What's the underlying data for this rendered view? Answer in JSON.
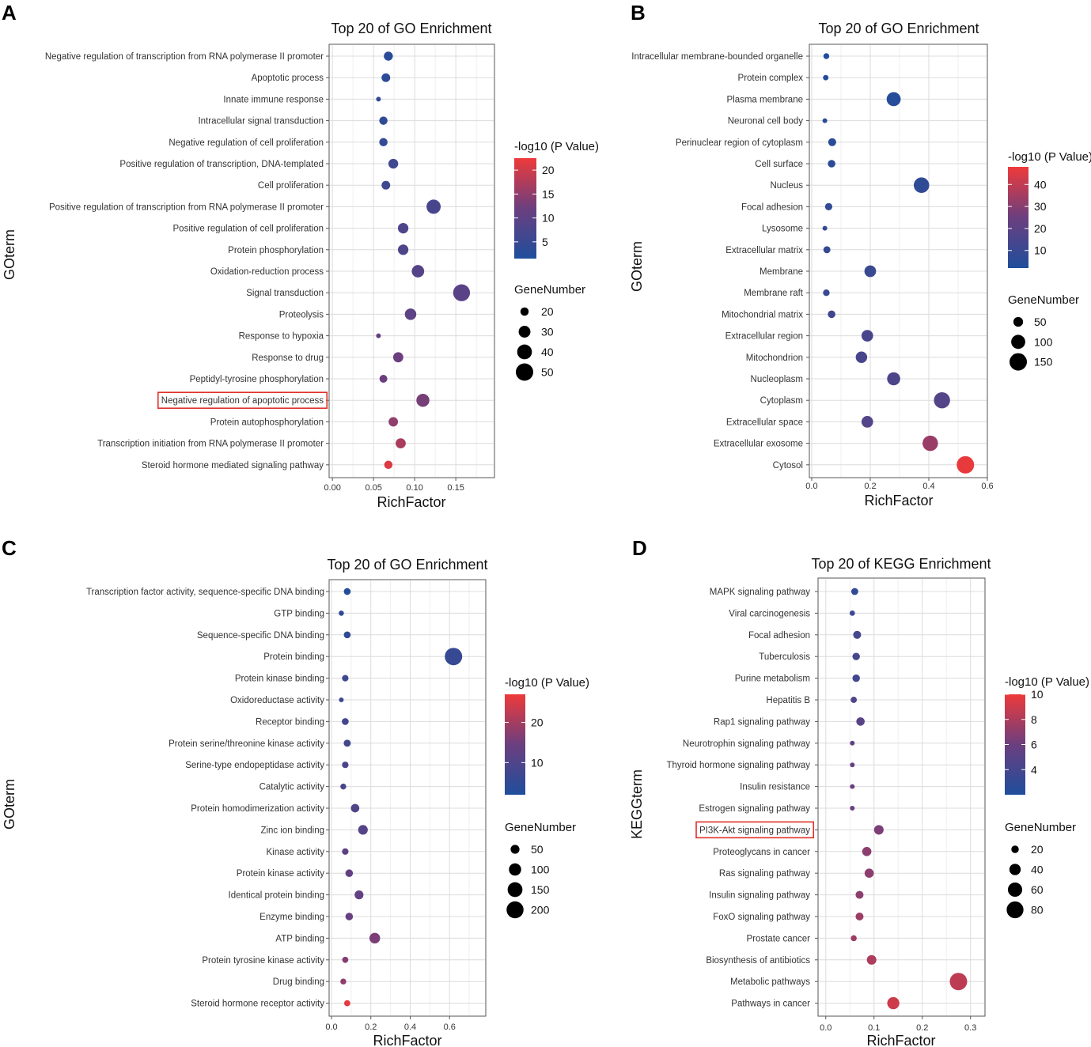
{
  "colors": {
    "low": "#1f4e9c",
    "mid": "#6b3f7f",
    "high": "#ee3a3a",
    "highlight": "#e0302a"
  },
  "chart_data": [
    {
      "type": "scatter",
      "panel": "A",
      "title": "Top 20 of GO Enrichment",
      "xlabel": "RichFactor",
      "ylabel": "GOterm",
      "xlim": [
        -0.004,
        0.197
      ],
      "xticks": [
        0.0,
        0.05,
        0.1,
        0.15
      ],
      "xtick_labels": [
        "0.00",
        "0.05",
        "0.10",
        "0.15"
      ],
      "color_legend": {
        "title": "-log10 (P Value)",
        "range": [
          1.5,
          22.5
        ],
        "ticks": [
          20,
          15,
          10,
          5
        ],
        "tick_labels": [
          "20",
          "15",
          "10",
          "5"
        ]
      },
      "size_legend": {
        "title": "GeneNumber",
        "values": [
          20,
          30,
          40,
          50
        ],
        "labels": [
          "20",
          "30",
          "40",
          "50"
        ]
      },
      "highlight": "Negative regulation of apoptotic process",
      "terms": [
        "Negative regulation of transcription from RNA polymerase II promoter",
        "Apoptotic process",
        "Innate immune response",
        "Intracellular signal transduction",
        "Negative regulation of cell proliferation",
        "Positive regulation of transcription, DNA-templated",
        "Cell proliferation",
        "Positive regulation of transcription from RNA polymerase II promoter",
        "Positive regulation of cell proliferation",
        "Protein phosphorylation",
        "Oxidation-reduction process",
        "Signal transduction",
        "Proteolysis",
        "Response to hypoxia",
        "Response to drug",
        "Peptidyl-tyrosine phosphorylation",
        "Negative regulation of apoptotic process",
        "Protein autophosphorylation",
        "Transcription initiation from RNA polymerase II promoter",
        "Steroid hormone mediated signaling pathway"
      ],
      "richfactor": [
        0.068,
        0.065,
        0.056,
        0.062,
        0.062,
        0.074,
        0.065,
        0.123,
        0.086,
        0.086,
        0.104,
        0.157,
        0.095,
        0.056,
        0.08,
        0.062,
        0.11,
        0.074,
        0.083,
        0.068
      ],
      "gene_number": [
        22,
        21,
        12,
        20,
        20,
        24,
        21,
        38,
        26,
        26,
        32,
        48,
        29,
        12,
        25,
        19,
        34,
        23,
        25,
        20
      ],
      "neg_log10_p": [
        3.0,
        3.5,
        4.0,
        4.0,
        4.5,
        6.0,
        6.0,
        7.0,
        8.0,
        8.0,
        9.0,
        9.5,
        10.0,
        11.0,
        12.0,
        12.0,
        13.0,
        15.0,
        17.0,
        21.0
      ]
    },
    {
      "type": "scatter",
      "panel": "B",
      "title": "Top 20 of GO Enrichment",
      "xlabel": "RichFactor",
      "ylabel": "GOterm",
      "xlim": [
        -0.008,
        0.6
      ],
      "xticks": [
        0.0,
        0.2,
        0.4,
        0.6
      ],
      "xtick_labels": [
        "0.0",
        "0.2",
        "0.4",
        "0.6"
      ],
      "color_legend": {
        "title": "-log10 (P Value)",
        "range": [
          2,
          48
        ],
        "ticks": [
          40,
          30,
          20,
          10
        ],
        "tick_labels": [
          "40",
          "30",
          "20",
          "10"
        ]
      },
      "size_legend": {
        "title": "GeneNumber",
        "values": [
          50,
          100,
          150
        ],
        "labels": [
          "50",
          "100",
          "150"
        ]
      },
      "highlight": null,
      "terms": [
        "Intracellular membrane-bounded organelle",
        "Protein complex",
        "Plasma membrane",
        "Neuronal cell body",
        "Perinuclear region of cytoplasm",
        "Cell surface",
        "Nucleus",
        "Focal adhesion",
        "Lysosome",
        "Extracellular matrix",
        "Membrane",
        "Membrane raft",
        "Mitochondrial matrix",
        "Extracellular region",
        "Mitochondrion",
        "Nucleoplasm",
        "Cytoplasm",
        "Extracellular space",
        "Extracellular exosome",
        "Cytosol"
      ],
      "richfactor": [
        0.05,
        0.048,
        0.28,
        0.045,
        0.07,
        0.068,
        0.375,
        0.058,
        0.045,
        0.052,
        0.2,
        0.05,
        0.068,
        0.19,
        0.17,
        0.28,
        0.445,
        0.19,
        0.405,
        0.525
      ],
      "gene_number": [
        20,
        18,
        100,
        14,
        35,
        32,
        120,
        30,
        14,
        28,
        70,
        25,
        32,
        70,
        68,
        88,
        130,
        70,
        120,
        150
      ],
      "neg_log10_p": [
        3,
        4,
        4,
        5,
        6,
        6,
        7,
        8,
        8,
        9,
        10,
        10,
        12,
        14,
        14,
        16,
        18,
        18,
        33,
        47
      ]
    },
    {
      "type": "scatter",
      "panel": "C",
      "title": "Top 20 of GO Enrichment",
      "xlabel": "RichFactor",
      "ylabel": "GOterm",
      "xlim": [
        -0.012,
        0.784
      ],
      "xticks": [
        0.0,
        0.2,
        0.4,
        0.6
      ],
      "xtick_labels": [
        "0.0",
        "0.2",
        "0.4",
        "0.6"
      ],
      "color_legend": {
        "title": "-log10 (P Value)",
        "range": [
          2,
          27
        ],
        "ticks": [
          20,
          10
        ],
        "tick_labels": [
          "20",
          "10"
        ]
      },
      "size_legend": {
        "title": "GeneNumber",
        "values": [
          50,
          100,
          150,
          200
        ],
        "labels": [
          "50",
          "100",
          "150",
          "200"
        ]
      },
      "highlight": null,
      "terms": [
        "Transcription factor activity, sequence-specific DNA binding",
        "GTP binding",
        "Sequence-specific DNA binding",
        "Protein binding",
        "Protein kinase binding",
        "Oxidoreductase activity",
        "Receptor binding",
        "Protein serine/threonine kinase activity",
        "Serine-type endopeptidase activity",
        "Catalytic activity",
        "Protein homodimerization activity",
        "Zinc ion binding",
        "Kinase activity",
        "Protein kinase activity",
        "Identical protein binding",
        "Enzyme binding",
        "ATP binding",
        "Protein tyrosine kinase activity",
        "Drug binding",
        "Steroid hormone receptor activity"
      ],
      "richfactor": [
        0.08,
        0.05,
        0.08,
        0.62,
        0.07,
        0.05,
        0.07,
        0.08,
        0.07,
        0.06,
        0.12,
        0.16,
        0.07,
        0.09,
        0.14,
        0.09,
        0.22,
        0.07,
        0.06,
        0.08
      ],
      "gene_number": [
        28,
        15,
        28,
        210,
        25,
        12,
        28,
        30,
        25,
        20,
        45,
        60,
        25,
        35,
        50,
        35,
        75,
        22,
        20,
        22
      ],
      "neg_log10_p": [
        3,
        5,
        5,
        6,
        7,
        7,
        8,
        8,
        9,
        9,
        10,
        11,
        12,
        13,
        13,
        14,
        16,
        17,
        18,
        26
      ]
    },
    {
      "type": "scatter",
      "panel": "D",
      "title": "Top 20 of KEGG Enrichment",
      "xlabel": "RichFactor",
      "ylabel": "KEGGterm",
      "xlim": [
        -0.016,
        0.33
      ],
      "xticks": [
        0.0,
        0.1,
        0.2,
        0.3
      ],
      "xtick_labels": [
        "0.0",
        "0.1",
        "0.2",
        "0.3"
      ],
      "color_legend": {
        "title": "-log10 (P Value)",
        "range": [
          2,
          10
        ],
        "ticks": [
          10,
          8,
          6,
          4
        ],
        "tick_labels": [
          "10",
          "8",
          "6",
          "4"
        ]
      },
      "size_legend": {
        "title": "GeneNumber",
        "values": [
          20,
          40,
          60,
          80
        ],
        "labels": [
          "20",
          "40",
          "60",
          "80"
        ]
      },
      "highlight": "PI3K-Akt signaling pathway",
      "terms": [
        "MAPK signaling pathway",
        "Viral carcinogenesis",
        "Focal adhesion",
        "Tuberculosis",
        "Purine metabolism",
        "Hepatitis B",
        "Rap1 signaling pathway",
        "Neurotrophin signaling pathway",
        "Thyroid hormone signaling pathway",
        "Insulin resistance",
        "Estrogen signaling pathway",
        "PI3K-Akt signaling pathway",
        "Proteoglycans in cancer",
        "Ras signaling pathway",
        "Insulin signaling pathway",
        "FoxO signaling pathway",
        "Prostate cancer",
        "Biosynthesis of antibiotics",
        "Metabolic pathways",
        "Pathways in cancer"
      ],
      "richfactor": [
        0.06,
        0.055,
        0.065,
        0.063,
        0.063,
        0.058,
        0.072,
        0.055,
        0.055,
        0.055,
        0.055,
        0.11,
        0.085,
        0.09,
        0.07,
        0.07,
        0.058,
        0.095,
        0.275,
        0.14
      ],
      "gene_number": [
        18,
        12,
        22,
        20,
        20,
        15,
        24,
        10,
        10,
        10,
        10,
        30,
        28,
        28,
        22,
        22,
        14,
        30,
        85,
        45
      ],
      "neg_log10_p": [
        3,
        3.5,
        4,
        4,
        4,
        4.5,
        5,
        5.5,
        5.5,
        6,
        6,
        6.5,
        7,
        7,
        7,
        7.5,
        7.5,
        8,
        8.5,
        9
      ]
    }
  ]
}
